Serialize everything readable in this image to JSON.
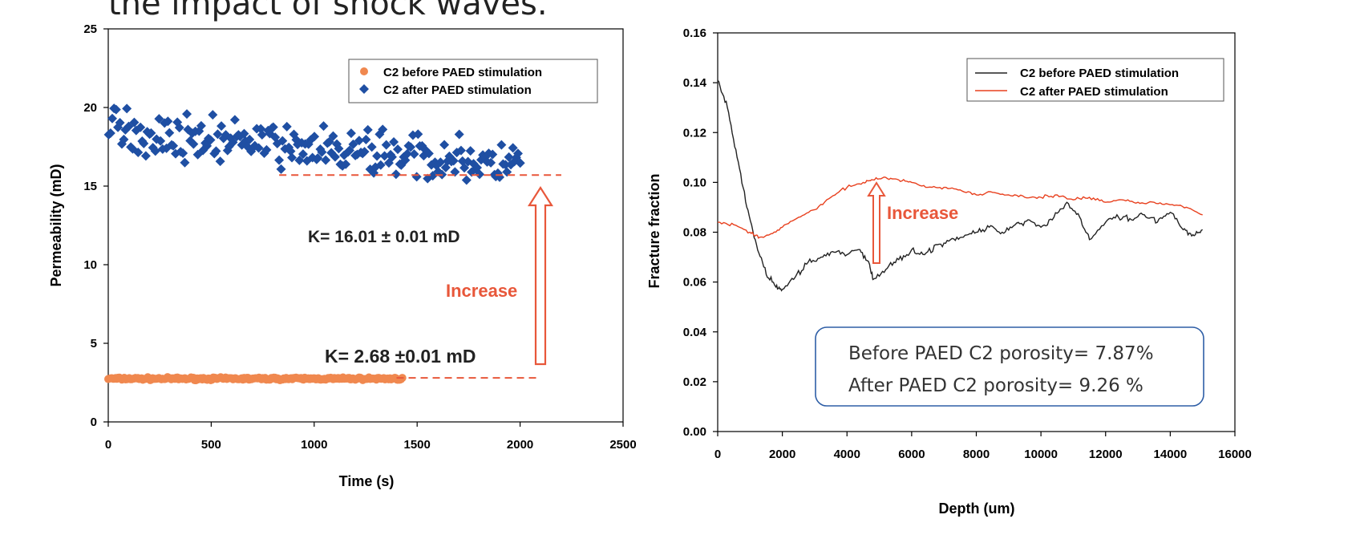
{
  "header_text": "the impact of shock waves.",
  "chart_data": [
    {
      "type": "scatter",
      "xlabel": "Time (s)",
      "ylabel": "Permeability (mD)",
      "xlim": [
        0,
        2500
      ],
      "ylim": [
        0,
        25
      ],
      "xticks": [
        "0",
        "500",
        "1000",
        "1500",
        "2000",
        "2500"
      ],
      "yticks": [
        "0",
        "5",
        "10",
        "15",
        "20",
        "25"
      ],
      "legend_position": "top-right",
      "series": [
        {
          "name": "C2 before PAED stimulation",
          "color": "#f0884f",
          "marker": "circle",
          "mean": 2.75,
          "x_range": [
            0,
            1430
          ],
          "spread": 0.12
        },
        {
          "name": "C2 after PAED stimulation",
          "color": "#1f4fa3",
          "marker": "diamond",
          "mean": 16.5,
          "x_range": [
            0,
            2000
          ],
          "spread": 1.6
        }
      ],
      "reference_lines": [
        {
          "y": 15.7,
          "x_from": 830,
          "x_to": 2200,
          "color": "#e8573a"
        },
        {
          "y": 2.8,
          "x_from": 1400,
          "x_to": 2080,
          "color": "#e8573a"
        }
      ],
      "annotations": {
        "k_after": "K= 16.01  ± 0.01 mD",
        "k_before": "K= 2.68 ±0.01 mD",
        "increase": "Increase"
      }
    },
    {
      "type": "line",
      "xlabel": "Depth (um)",
      "ylabel": "Fracture fraction",
      "xlim": [
        0,
        16000
      ],
      "ylim": [
        0,
        0.16
      ],
      "xticks": [
        "0",
        "2000",
        "4000",
        "6000",
        "8000",
        "10000",
        "12000",
        "14000",
        "16000"
      ],
      "yticks": [
        "0.00",
        "0.02",
        "0.04",
        "0.06",
        "0.08",
        "0.10",
        "0.12",
        "0.14",
        "0.16"
      ],
      "legend_position": "top-right",
      "series": [
        {
          "name": "C2 before PAED stimulation",
          "color": "#222222",
          "x": [
            0,
            300,
            600,
            900,
            1200,
            1500,
            1800,
            2000,
            2400,
            2800,
            3200,
            3600,
            4000,
            4400,
            4700,
            4800,
            5200,
            5600,
            6000,
            6400,
            6800,
            7200,
            7600,
            8000,
            8400,
            8800,
            9200,
            9600,
            10000,
            10400,
            10800,
            11200,
            11500,
            12000,
            12400,
            12800,
            13200,
            13600,
            14000,
            14400,
            14700,
            15000
          ],
          "values": [
            0.141,
            0.13,
            0.11,
            0.09,
            0.075,
            0.063,
            0.058,
            0.057,
            0.062,
            0.068,
            0.07,
            0.072,
            0.071,
            0.073,
            0.067,
            0.061,
            0.065,
            0.069,
            0.073,
            0.071,
            0.075,
            0.077,
            0.078,
            0.08,
            0.082,
            0.08,
            0.083,
            0.085,
            0.082,
            0.086,
            0.092,
            0.086,
            0.077,
            0.084,
            0.086,
            0.085,
            0.087,
            0.084,
            0.088,
            0.081,
            0.079,
            0.081
          ]
        },
        {
          "name": "C2 after PAED stimulation",
          "color": "#e8401e",
          "x": [
            0,
            500,
            1000,
            1300,
            1600,
            2000,
            2500,
            3000,
            3500,
            4000,
            4500,
            4800,
            5200,
            5600,
            6000,
            6500,
            7000,
            7500,
            8000,
            8500,
            9000,
            9500,
            10000,
            10500,
            11000,
            11500,
            12000,
            12500,
            13000,
            13500,
            14000,
            14500,
            15000
          ],
          "values": [
            0.084,
            0.083,
            0.08,
            0.078,
            0.079,
            0.082,
            0.086,
            0.089,
            0.094,
            0.098,
            0.1,
            0.101,
            0.102,
            0.101,
            0.1,
            0.098,
            0.098,
            0.097,
            0.095,
            0.096,
            0.095,
            0.094,
            0.094,
            0.095,
            0.093,
            0.094,
            0.092,
            0.093,
            0.092,
            0.092,
            0.091,
            0.09,
            0.087
          ]
        }
      ],
      "annotations": {
        "increase": "Increase",
        "box_line_1": "Before PAED C2 porosity= 7.87%",
        "box_line_2": "After PAED C2 porosity= 9.26 %"
      }
    }
  ]
}
